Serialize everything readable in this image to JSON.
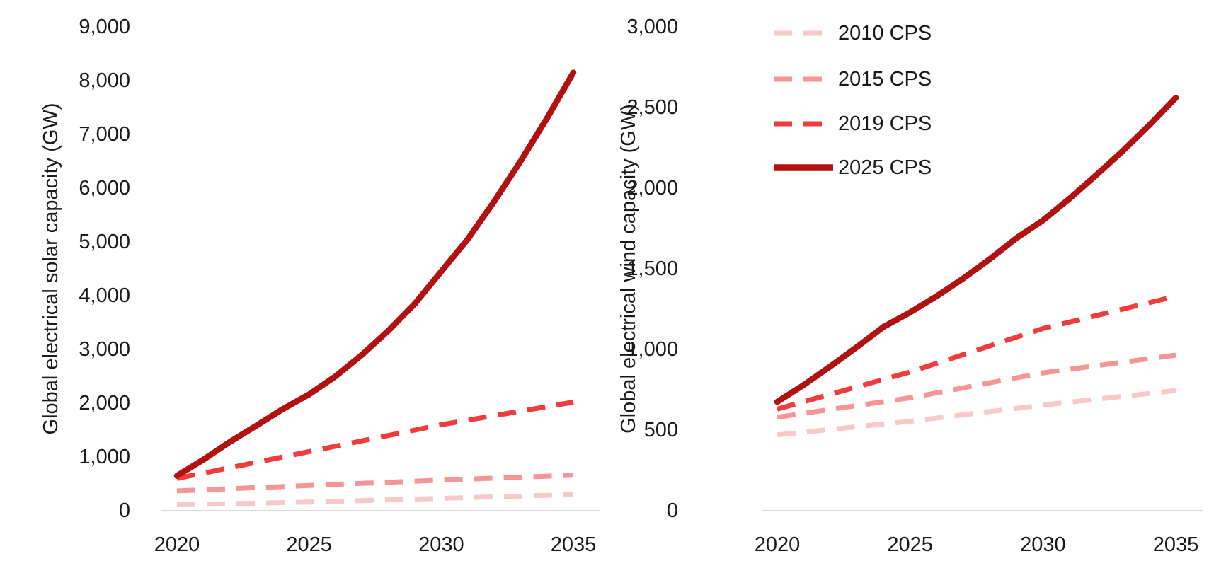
{
  "page": {
    "background": "#ffffff"
  },
  "colors": {
    "text": "#1a1a1a",
    "axis_line": "#d9d9d9",
    "series_2010": "#f8c9c9",
    "series_2015": "#f59595",
    "series_2019": "#f03c3c",
    "series_2025": "#b11111"
  },
  "legend": {
    "position": "top-left-of-wind-chart",
    "items": [
      {
        "label": "2010 CPS",
        "color": "#f8c9c9",
        "style": "dashed"
      },
      {
        "label": "2015 CPS",
        "color": "#f59595",
        "style": "dashed"
      },
      {
        "label": "2019 CPS",
        "color": "#f03c3c",
        "style": "dashed"
      },
      {
        "label": "2025 CPS",
        "color": "#b11111",
        "style": "solid"
      }
    ]
  },
  "chart_data": [
    {
      "type": "line",
      "title": "",
      "xlabel": "",
      "ylabel": "Global electrical solar capacity (GW)",
      "ylim": [
        0,
        9000
      ],
      "xlim": [
        2020,
        2035
      ],
      "grid": false,
      "show_legend": false,
      "yticks": [
        {
          "value": 0,
          "label": "0"
        },
        {
          "value": 1000,
          "label": "1,000"
        },
        {
          "value": 2000,
          "label": "2,000"
        },
        {
          "value": 3000,
          "label": "3,000"
        },
        {
          "value": 4000,
          "label": "4,000"
        },
        {
          "value": 5000,
          "label": "5,000"
        },
        {
          "value": 6000,
          "label": "6,000"
        },
        {
          "value": 7000,
          "label": "7,000"
        },
        {
          "value": 8000,
          "label": "8,000"
        },
        {
          "value": 9000,
          "label": "9,000"
        }
      ],
      "xticks": [
        {
          "value": 2020,
          "label": "2020"
        },
        {
          "value": 2025,
          "label": "2025"
        },
        {
          "value": 2030,
          "label": "2030"
        },
        {
          "value": 2035,
          "label": "2035"
        }
      ],
      "series": [
        {
          "name": "2010 CPS",
          "style": "dashed",
          "color": "#f8c9c9",
          "x": [
            2020,
            2025,
            2030,
            2035
          ],
          "values": [
            110,
            160,
            230,
            300
          ]
        },
        {
          "name": "2015 CPS",
          "style": "dashed",
          "color": "#f59595",
          "x": [
            2020,
            2025,
            2030,
            2035
          ],
          "values": [
            370,
            470,
            570,
            660
          ]
        },
        {
          "name": "2019 CPS",
          "style": "dashed",
          "color": "#f03c3c",
          "x": [
            2020,
            2025,
            2030,
            2035
          ],
          "values": [
            600,
            1100,
            1600,
            2020
          ]
        },
        {
          "name": "2025 CPS",
          "style": "solid",
          "color": "#b11111",
          "x": [
            2020,
            2021,
            2022,
            2023,
            2024,
            2025,
            2026,
            2027,
            2028,
            2029,
            2030,
            2031,
            2032,
            2033,
            2034,
            2035
          ],
          "values": [
            650,
            950,
            1280,
            1580,
            1890,
            2165,
            2500,
            2900,
            3350,
            3850,
            4450,
            5050,
            5750,
            6500,
            7300,
            8150
          ]
        }
      ]
    },
    {
      "type": "line",
      "title": "",
      "xlabel": "",
      "ylabel": "Global electrical wind capacity (GW)",
      "ylim": [
        0,
        3000
      ],
      "xlim": [
        2020,
        2035
      ],
      "grid": false,
      "show_legend": true,
      "yticks": [
        {
          "value": 0,
          "label": "0"
        },
        {
          "value": 500,
          "label": "500"
        },
        {
          "value": 1000,
          "label": "1,000"
        },
        {
          "value": 1500,
          "label": "1,500"
        },
        {
          "value": 2000,
          "label": "2,000"
        },
        {
          "value": 2500,
          "label": "2,500"
        },
        {
          "value": 3000,
          "label": "3,000"
        }
      ],
      "xticks": [
        {
          "value": 2020,
          "label": "2020"
        },
        {
          "value": 2025,
          "label": "2025"
        },
        {
          "value": 2030,
          "label": "2030"
        },
        {
          "value": 2035,
          "label": "2035"
        }
      ],
      "series": [
        {
          "name": "2010 CPS",
          "style": "dashed",
          "color": "#f8c9c9",
          "x": [
            2020,
            2025,
            2030,
            2035
          ],
          "values": [
            470,
            555,
            655,
            745
          ]
        },
        {
          "name": "2015 CPS",
          "style": "dashed",
          "color": "#f59595",
          "x": [
            2020,
            2025,
            2030,
            2035
          ],
          "values": [
            580,
            700,
            855,
            965
          ]
        },
        {
          "name": "2019 CPS",
          "style": "dashed",
          "color": "#f03c3c",
          "x": [
            2020,
            2025,
            2030,
            2035
          ],
          "values": [
            630,
            860,
            1130,
            1330
          ]
        },
        {
          "name": "2025 CPS",
          "style": "solid",
          "color": "#b11111",
          "x": [
            2020,
            2021,
            2022,
            2023,
            2024,
            2025,
            2026,
            2027,
            2028,
            2029,
            2030,
            2031,
            2032,
            2033,
            2034,
            2035
          ],
          "values": [
            675,
            780,
            895,
            1015,
            1140,
            1230,
            1330,
            1440,
            1560,
            1690,
            1800,
            1935,
            2080,
            2230,
            2390,
            2560
          ]
        }
      ]
    }
  ]
}
